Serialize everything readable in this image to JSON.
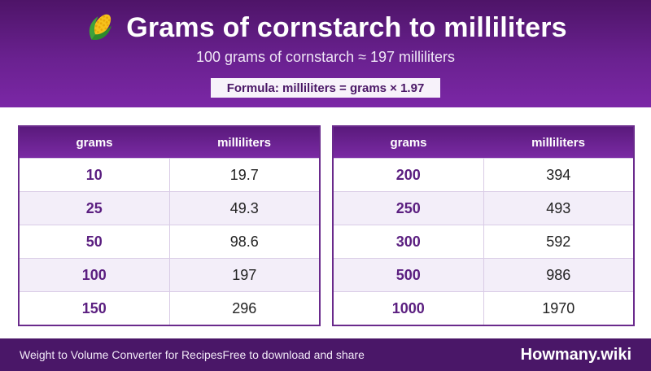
{
  "header": {
    "icon": "corn-icon",
    "title": "Grams of cornstarch to milliliters",
    "subtitle": "100 grams of cornstarch ≈ 197 milliliters",
    "formula": "Formula: milliliters = grams × 1.97"
  },
  "tables": [
    {
      "col_grams": "grams",
      "col_ml": "milliliters",
      "rows": [
        {
          "grams": "10",
          "ml": "19.7"
        },
        {
          "grams": "25",
          "ml": "49.3"
        },
        {
          "grams": "50",
          "ml": "98.6"
        },
        {
          "grams": "100",
          "ml": "197"
        },
        {
          "grams": "150",
          "ml": "296"
        }
      ]
    },
    {
      "col_grams": "grams",
      "col_ml": "milliliters",
      "rows": [
        {
          "grams": "200",
          "ml": "394"
        },
        {
          "grams": "250",
          "ml": "493"
        },
        {
          "grams": "300",
          "ml": "592"
        },
        {
          "grams": "500",
          "ml": "986"
        },
        {
          "grams": "1000",
          "ml": "1970"
        }
      ]
    }
  ],
  "footer": {
    "left_text": "Weight to Volume Converter for Recipes",
    "left_text_2": "Free to download and share",
    "brand": "Howmany.wiki"
  },
  "colors": {
    "header_purple": "#6a2190",
    "footer_purple": "#4a1768",
    "grams_text": "#5b1f80",
    "alt_row": "#f3eef9"
  }
}
